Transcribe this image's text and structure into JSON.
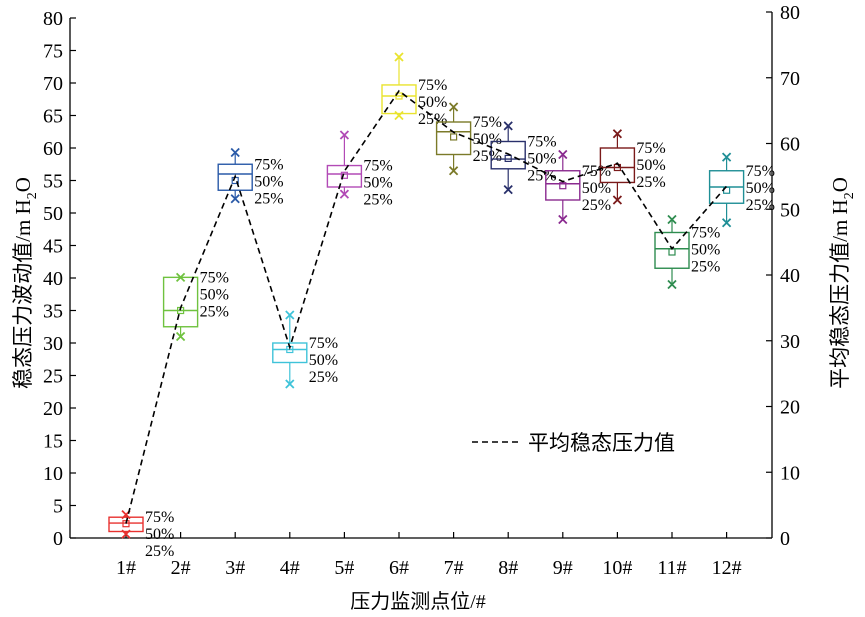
{
  "chart_data": {
    "type": "box",
    "xlabel": "压力监测点位/#",
    "ylabel_left": "稳态压力波动值/m H2O",
    "ylabel_right": "平均稳态压力值/m H2O",
    "ylabel_main": "稳态压力波动值/m H",
    "ylabel_right_main": "平均稳态压力值/m H",
    "ylabel_sub": "2",
    "ylabel_end": "O",
    "left_ylim": [
      0,
      80
    ],
    "left_yticks": [
      "0",
      "5",
      "10",
      "15",
      "20",
      "25",
      "30",
      "35",
      "40",
      "45",
      "50",
      "55",
      "60",
      "65",
      "70",
      "75",
      "80"
    ],
    "right_ylim": [
      0,
      80
    ],
    "right_yticks": [
      "0",
      "10",
      "20",
      "30",
      "40",
      "50",
      "60",
      "70",
      "80"
    ],
    "categories": [
      "1#",
      "2#",
      "3#",
      "4#",
      "5#",
      "6#",
      "7#",
      "8#",
      "9#",
      "10#",
      "11#",
      "12#"
    ],
    "percentile_labels": [
      "75%",
      "50%",
      "25%"
    ],
    "legend": "平均稳态压力值",
    "boxes": [
      {
        "cat": "1#",
        "color": "#e8312f",
        "max": 3.6,
        "q3": 3.2,
        "median": 2.3,
        "q1": 1.0,
        "min": 0.6,
        "mean": 2.2
      },
      {
        "cat": "2#",
        "color": "#6fc23f",
        "max": 40.1,
        "q3": 40.1,
        "median": 35.0,
        "q1": 32.5,
        "min": 31.0,
        "mean": 35.0
      },
      {
        "cat": "3#",
        "color": "#2a5aa8",
        "max": 59.3,
        "q3": 57.5,
        "median": 56.0,
        "q1": 53.5,
        "min": 52.2,
        "mean": 55.0
      },
      {
        "cat": "4#",
        "color": "#3fc3d9",
        "max": 34.3,
        "q3": 30.0,
        "median": 29.0,
        "q1": 27.0,
        "min": 23.7,
        "mean": 29.0
      },
      {
        "cat": "5#",
        "color": "#b24ab6",
        "max": 62.0,
        "q3": 57.3,
        "median": 56.0,
        "q1": 54.0,
        "min": 52.9,
        "mean": 55.8
      },
      {
        "cat": "6#",
        "color": "#e9e32e",
        "max": 74.0,
        "q3": 69.7,
        "median": 68.0,
        "q1": 65.3,
        "min": 65.0,
        "mean": 68.0
      },
      {
        "cat": "7#",
        "color": "#7b7a29",
        "max": 66.3,
        "q3": 64.0,
        "median": 62.5,
        "q1": 59.0,
        "min": 56.5,
        "mean": 61.7
      },
      {
        "cat": "8#",
        "color": "#29306b",
        "max": 63.4,
        "q3": 61.0,
        "median": 58.3,
        "q1": 56.8,
        "min": 53.6,
        "mean": 58.4
      },
      {
        "cat": "9#",
        "color": "#8a2a8f",
        "max": 59.0,
        "q3": 56.5,
        "median": 54.5,
        "q1": 52.0,
        "min": 49.0,
        "mean": 54.2
      },
      {
        "cat": "10#",
        "color": "#7a1a1a",
        "max": 62.2,
        "q3": 60.0,
        "median": 57.0,
        "q1": 54.7,
        "min": 52.0,
        "mean": 57.0
      },
      {
        "cat": "11#",
        "color": "#2e8c4f",
        "max": 49.0,
        "q3": 47.0,
        "median": 44.5,
        "q1": 41.5,
        "min": 39.0,
        "mean": 44.0
      },
      {
        "cat": "12#",
        "color": "#1f8f96",
        "max": 58.6,
        "q3": 56.5,
        "median": 54.0,
        "q1": 51.5,
        "min": 48.5,
        "mean": 53.5
      }
    ]
  }
}
